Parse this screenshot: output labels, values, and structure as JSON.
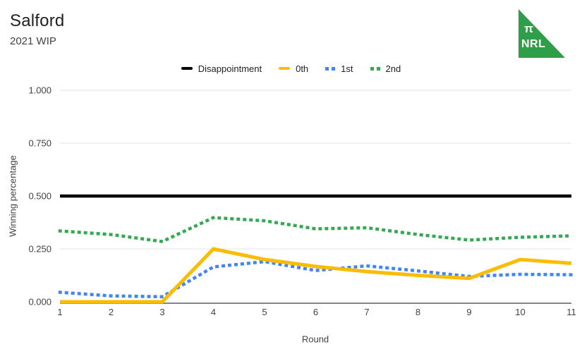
{
  "header": {
    "title": "Salford",
    "subtitle": "2021 WIP"
  },
  "logo": {
    "pi_symbol": "π",
    "text": "NRL",
    "color": "#2E9E48"
  },
  "legend": {
    "items": [
      {
        "label": "Disappointment",
        "color": "#000000",
        "style": "solid"
      },
      {
        "label": "0th",
        "color": "#FBBC04",
        "style": "solid"
      },
      {
        "label": "1st",
        "color": "#4285F4",
        "style": "dotted"
      },
      {
        "label": "2nd",
        "color": "#34A853",
        "style": "dotted"
      }
    ]
  },
  "chart_data": {
    "type": "line",
    "title": "Salford",
    "subtitle": "2021 WIP",
    "x": [
      1,
      2,
      3,
      4,
      5,
      6,
      7,
      8,
      9,
      10,
      11
    ],
    "xlabel": "Round",
    "ylabel": "Winning percentage",
    "xlim": [
      1,
      11
    ],
    "ylim": [
      0,
      1
    ],
    "yticks": [
      0,
      0.25,
      0.5,
      0.75,
      1
    ],
    "ytick_labels": [
      "0.000",
      "0.250",
      "0.500",
      "0.750",
      "1.000"
    ],
    "grid": true,
    "legend_position": "top",
    "series": [
      {
        "name": "Disappointment",
        "color": "#000000",
        "line_style": "solid",
        "values": [
          0.5,
          0.5,
          0.5,
          0.5,
          0.5,
          0.5,
          0.5,
          0.5,
          0.5,
          0.5,
          0.5
        ]
      },
      {
        "name": "0th",
        "color": "#FBBC04",
        "line_style": "solid",
        "values": [
          0.0,
          0.0,
          0.0,
          0.25,
          0.2,
          0.167,
          0.143,
          0.125,
          0.111,
          0.2,
          0.182
        ]
      },
      {
        "name": "1st",
        "color": "#4285F4",
        "line_style": "dotted",
        "values": [
          0.045,
          0.028,
          0.024,
          0.165,
          0.19,
          0.148,
          0.17,
          0.146,
          0.12,
          0.13,
          0.128
        ]
      },
      {
        "name": "2nd",
        "color": "#34A853",
        "line_style": "dotted",
        "values": [
          0.335,
          0.318,
          0.285,
          0.398,
          0.383,
          0.345,
          0.35,
          0.318,
          0.292,
          0.305,
          0.312
        ]
      }
    ]
  },
  "style": {
    "gridline_color": "#E6E6E6",
    "axis_line_color": "#80868B",
    "tick_text_color": "#424242"
  }
}
